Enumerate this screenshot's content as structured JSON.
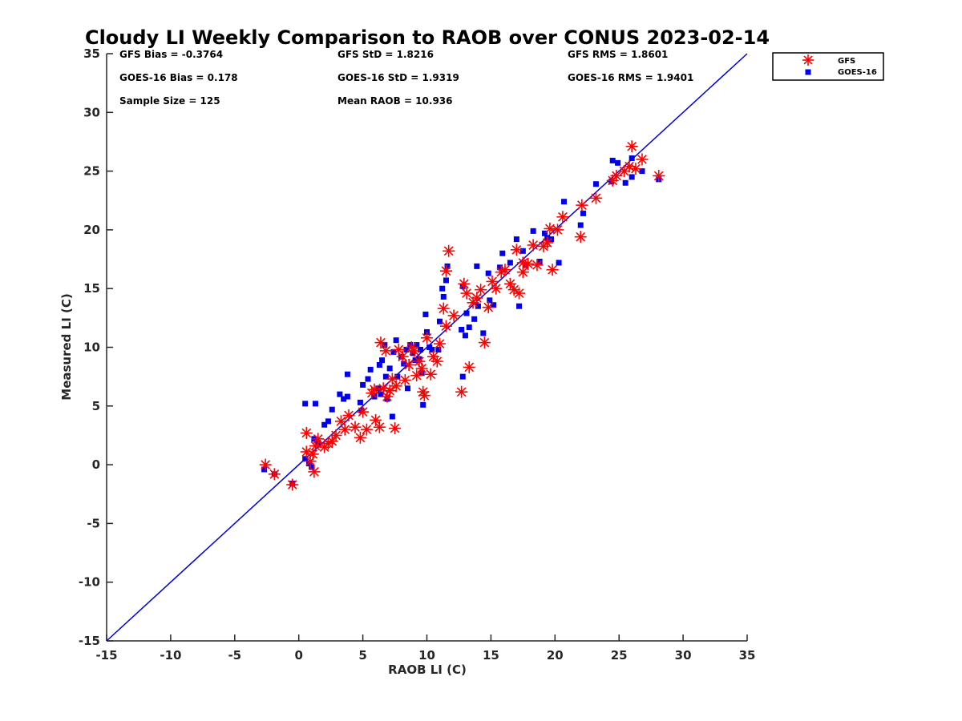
{
  "chart_data": {
    "type": "scatter",
    "title": "Cloudy LI Weekly Comparison to RAOB over CONUS 2023-02-14",
    "xlabel": "RAOB LI (C)",
    "ylabel": "Measured LI (C)",
    "xlim": [
      -15,
      35
    ],
    "ylim": [
      -15,
      35
    ],
    "xticks": [
      -15,
      -10,
      -5,
      0,
      5,
      10,
      15,
      20,
      25,
      30,
      35
    ],
    "yticks": [
      -15,
      -10,
      -5,
      0,
      5,
      10,
      15,
      20,
      25,
      30,
      35
    ],
    "grid": false,
    "legend_position": "outside-top-right",
    "reference_line": {
      "from": [
        -15,
        -15
      ],
      "to": [
        35,
        35
      ],
      "color": "#0000dd"
    },
    "stats": [
      [
        "GFS Bias = -0.3764",
        "GFS StD = 1.8216",
        "GFS RMS = 1.8601"
      ],
      [
        "GOES-16 Bias = 0.178",
        "GOES-16 StD = 1.9319",
        "GOES-16 RMS = 1.9401"
      ],
      [
        "Sample Size = 125",
        "Mean RAOB = 10.936",
        ""
      ]
    ],
    "series": [
      {
        "name": "GFS",
        "marker": "asterisk",
        "color": "#ff0000",
        "points": [
          [
            -2.6,
            0.0
          ],
          [
            -1.9,
            -0.8
          ],
          [
            -0.5,
            -1.7
          ],
          [
            0.6,
            2.7
          ],
          [
            0.6,
            1.1
          ],
          [
            0.9,
            0.3
          ],
          [
            1.1,
            0.9
          ],
          [
            1.2,
            -0.6
          ],
          [
            1.3,
            1.6
          ],
          [
            1.5,
            2.2
          ],
          [
            2.0,
            1.5
          ],
          [
            2.3,
            1.8
          ],
          [
            2.6,
            2.0
          ],
          [
            2.9,
            2.5
          ],
          [
            3.3,
            3.7
          ],
          [
            3.6,
            3.0
          ],
          [
            3.9,
            4.2
          ],
          [
            4.4,
            3.2
          ],
          [
            4.8,
            2.3
          ],
          [
            5.0,
            4.5
          ],
          [
            5.3,
            3.0
          ],
          [
            5.7,
            6.1
          ],
          [
            5.9,
            6.4
          ],
          [
            6.0,
            3.8
          ],
          [
            6.3,
            3.2
          ],
          [
            6.4,
            10.4
          ],
          [
            6.6,
            6.5
          ],
          [
            6.8,
            9.7
          ],
          [
            6.9,
            5.8
          ],
          [
            7.1,
            6.3
          ],
          [
            7.3,
            7.3
          ],
          [
            7.5,
            3.1
          ],
          [
            7.6,
            6.7
          ],
          [
            7.8,
            9.8
          ],
          [
            8.1,
            9.2
          ],
          [
            8.3,
            7.2
          ],
          [
            8.6,
            8.5
          ],
          [
            8.8,
            10.0
          ],
          [
            9.0,
            9.7
          ],
          [
            9.2,
            7.6
          ],
          [
            9.4,
            8.8
          ],
          [
            9.6,
            8.2
          ],
          [
            9.7,
            6.2
          ],
          [
            9.8,
            5.9
          ],
          [
            10.0,
            10.8
          ],
          [
            10.3,
            7.7
          ],
          [
            10.5,
            9.2
          ],
          [
            10.8,
            8.8
          ],
          [
            11.0,
            10.3
          ],
          [
            11.3,
            13.3
          ],
          [
            11.5,
            11.8
          ],
          [
            11.7,
            18.2
          ],
          [
            11.5,
            16.5
          ],
          [
            12.1,
            12.7
          ],
          [
            12.7,
            6.2
          ],
          [
            12.9,
            15.4
          ],
          [
            13.1,
            14.6
          ],
          [
            13.3,
            8.3
          ],
          [
            13.6,
            13.8
          ],
          [
            13.9,
            14.2
          ],
          [
            14.2,
            14.9
          ],
          [
            14.5,
            10.4
          ],
          [
            14.8,
            13.4
          ],
          [
            15.1,
            15.6
          ],
          [
            15.4,
            15.0
          ],
          [
            15.8,
            16.4
          ],
          [
            16.1,
            16.6
          ],
          [
            16.5,
            15.4
          ],
          [
            16.8,
            14.9
          ],
          [
            17.0,
            18.3
          ],
          [
            17.2,
            14.6
          ],
          [
            17.5,
            17.2
          ],
          [
            17.5,
            16.4
          ],
          [
            17.9,
            17.1
          ],
          [
            18.3,
            18.7
          ],
          [
            18.6,
            17.0
          ],
          [
            19.1,
            18.6
          ],
          [
            19.4,
            18.9
          ],
          [
            19.6,
            20.1
          ],
          [
            19.8,
            16.6
          ],
          [
            20.2,
            20.0
          ],
          [
            20.6,
            21.1
          ],
          [
            22.0,
            19.4
          ],
          [
            22.1,
            22.1
          ],
          [
            23.2,
            22.7
          ],
          [
            24.5,
            24.2
          ],
          [
            24.8,
            24.6
          ],
          [
            25.4,
            25.0
          ],
          [
            25.8,
            25.4
          ],
          [
            26.0,
            27.1
          ],
          [
            26.3,
            25.2
          ],
          [
            26.8,
            26.0
          ],
          [
            28.1,
            24.6
          ]
        ]
      },
      {
        "name": "GOES-16",
        "marker": "square",
        "color": "#0000ee",
        "points": [
          [
            -2.7,
            -0.4
          ],
          [
            -1.9,
            -0.8
          ],
          [
            -0.5,
            -1.6
          ],
          [
            0.5,
            5.2
          ],
          [
            0.5,
            0.5
          ],
          [
            0.8,
            0.1
          ],
          [
            1.0,
            -0.2
          ],
          [
            1.2,
            2.2
          ],
          [
            1.3,
            5.2
          ],
          [
            1.5,
            1.9
          ],
          [
            2.0,
            3.4
          ],
          [
            2.3,
            3.7
          ],
          [
            2.6,
            4.7
          ],
          [
            3.2,
            6.0
          ],
          [
            3.5,
            5.6
          ],
          [
            3.8,
            7.7
          ],
          [
            3.8,
            5.8
          ],
          [
            4.8,
            5.3
          ],
          [
            4.9,
            4.6
          ],
          [
            5.0,
            6.8
          ],
          [
            5.4,
            7.3
          ],
          [
            5.6,
            8.1
          ],
          [
            5.9,
            5.8
          ],
          [
            6.2,
            6.5
          ],
          [
            6.3,
            8.5
          ],
          [
            6.4,
            6.0
          ],
          [
            6.5,
            8.9
          ],
          [
            6.7,
            10.2
          ],
          [
            6.8,
            7.5
          ],
          [
            6.9,
            5.6
          ],
          [
            7.1,
            8.2
          ],
          [
            7.3,
            4.1
          ],
          [
            7.4,
            9.6
          ],
          [
            7.6,
            10.6
          ],
          [
            7.7,
            7.5
          ],
          [
            8.0,
            9.2
          ],
          [
            8.2,
            8.6
          ],
          [
            8.4,
            9.8
          ],
          [
            8.5,
            6.5
          ],
          [
            8.7,
            10.2
          ],
          [
            8.9,
            9.5
          ],
          [
            9.1,
            8.9
          ],
          [
            9.2,
            10.2
          ],
          [
            9.4,
            9.0
          ],
          [
            9.5,
            9.8
          ],
          [
            9.6,
            7.8
          ],
          [
            9.7,
            5.1
          ],
          [
            9.9,
            12.8
          ],
          [
            10.0,
            11.3
          ],
          [
            10.2,
            10.0
          ],
          [
            10.4,
            9.8
          ],
          [
            10.9,
            9.8
          ],
          [
            11.0,
            12.2
          ],
          [
            11.2,
            15.0
          ],
          [
            11.3,
            14.3
          ],
          [
            11.5,
            15.7
          ],
          [
            11.6,
            16.9
          ],
          [
            12.7,
            11.5
          ],
          [
            12.8,
            7.5
          ],
          [
            12.8,
            15.2
          ],
          [
            13.0,
            11.0
          ],
          [
            13.1,
            12.9
          ],
          [
            13.3,
            11.7
          ],
          [
            13.7,
            12.4
          ],
          [
            13.9,
            16.9
          ],
          [
            14.0,
            13.5
          ],
          [
            14.4,
            11.2
          ],
          [
            14.8,
            16.3
          ],
          [
            14.9,
            14.0
          ],
          [
            15.2,
            13.6
          ],
          [
            15.7,
            16.8
          ],
          [
            15.9,
            18.0
          ],
          [
            16.5,
            17.2
          ],
          [
            17.0,
            19.2
          ],
          [
            17.2,
            13.5
          ],
          [
            17.5,
            18.2
          ],
          [
            17.7,
            17.0
          ],
          [
            18.3,
            19.9
          ],
          [
            18.8,
            17.3
          ],
          [
            19.2,
            19.7
          ],
          [
            19.4,
            19.3
          ],
          [
            19.7,
            19.2
          ],
          [
            20.3,
            17.2
          ],
          [
            20.7,
            22.4
          ],
          [
            22.0,
            20.4
          ],
          [
            22.2,
            21.4
          ],
          [
            23.2,
            23.9
          ],
          [
            24.4,
            24.1
          ],
          [
            24.5,
            25.9
          ],
          [
            24.9,
            25.7
          ],
          [
            25.5,
            24.0
          ],
          [
            26.0,
            26.1
          ],
          [
            26.0,
            24.5
          ],
          [
            26.8,
            25.0
          ],
          [
            28.1,
            24.3
          ]
        ]
      }
    ]
  }
}
